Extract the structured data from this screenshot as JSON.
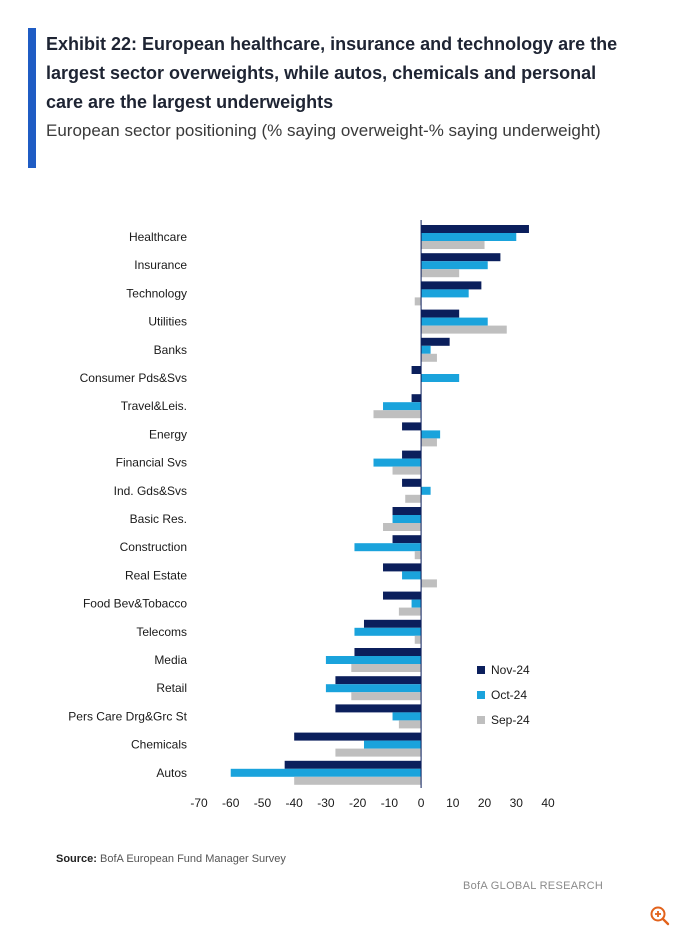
{
  "header": {
    "title": "Exhibit 22: European healthcare, insurance and technology are the largest sector overweights, while autos, chemicals and personal care are the largest underweights",
    "subtitle": "European sector positioning (% saying overweight-% saying underweight)"
  },
  "chart_data": {
    "type": "bar",
    "orientation": "horizontal",
    "categories": [
      "Healthcare",
      "Insurance",
      "Technology",
      "Utilities",
      "Banks",
      "Consumer Pds&Svs",
      "Travel&Leis.",
      "Energy",
      "Financial Svs",
      "Ind. Gds&Svs",
      "Basic Res.",
      "Construction",
      "Real Estate",
      "Food Bev&Tobacco",
      "Telecoms",
      "Media",
      "Retail",
      "Pers Care Drg&Grc St",
      "Chemicals",
      "Autos"
    ],
    "series": [
      {
        "name": "Nov-24",
        "color": "#0b1f5c",
        "values": [
          34,
          25,
          19,
          12,
          9,
          -3,
          -3,
          -6,
          -6,
          -6,
          -9,
          -9,
          -12,
          -12,
          -18,
          -21,
          -27,
          -27,
          -40,
          -43
        ]
      },
      {
        "name": "Oct-24",
        "color": "#1aa3dc",
        "values": [
          30,
          21,
          15,
          21,
          3,
          12,
          -12,
          6,
          -15,
          3,
          -9,
          -21,
          -6,
          -3,
          -21,
          -30,
          -30,
          -9,
          -18,
          -60
        ]
      },
      {
        "name": "Sep-24",
        "color": "#bfbfbf",
        "values": [
          20,
          12,
          -2,
          27,
          5,
          0,
          -15,
          5,
          -9,
          -5,
          -12,
          -2,
          5,
          -7,
          -2,
          -22,
          -22,
          -7,
          -27,
          -40
        ]
      }
    ],
    "xlim": [
      -70,
      40
    ],
    "xticks": [
      -70,
      -60,
      -50,
      -40,
      -30,
      -20,
      -10,
      0,
      10,
      20,
      30,
      40
    ],
    "legend_position": "right",
    "gridlines": false
  },
  "footer": {
    "source_label": "Source:",
    "source_text": "BofA European Fund Manager Survey",
    "brand": "BofA GLOBAL RESEARCH"
  },
  "icons": {
    "zoom": "zoom-in-icon"
  }
}
